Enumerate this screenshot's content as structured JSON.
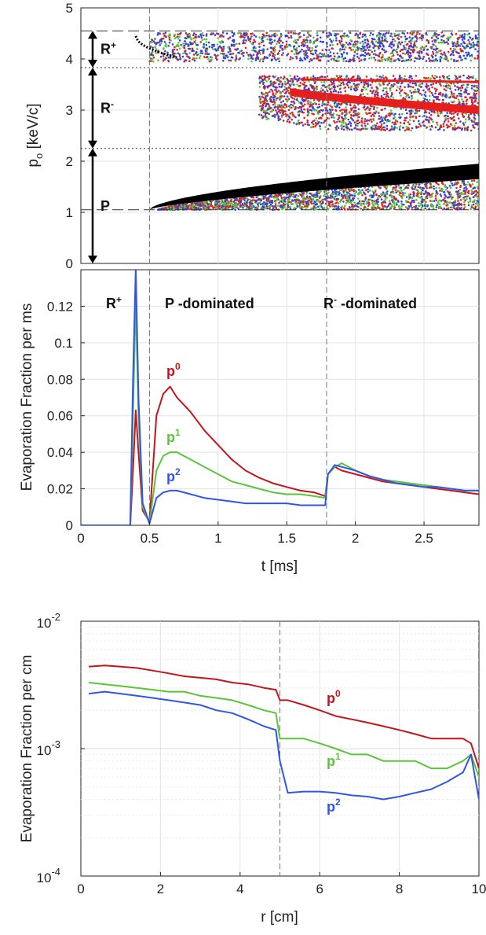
{
  "chart_data": [
    {
      "type": "scatter",
      "xlabel": "",
      "ylabel": "p_o [keV/c]",
      "ylabel_main": "p",
      "ylabel_sub": "o",
      "ylabel_rest": " [keV/c]",
      "xlim": [
        0,
        2.9
      ],
      "ylim": [
        0,
        5
      ],
      "y_ticks": [
        "0",
        "1",
        "2",
        "3",
        "4",
        "5"
      ],
      "grid": true,
      "regions": [
        {
          "label_main": "R",
          "label_sup": "+",
          "range": [
            3.83,
            4.55
          ]
        },
        {
          "label_main": "R",
          "label_sup": "-",
          "range": [
            2.25,
            3.83
          ]
        },
        {
          "label_main": "P",
          "label_sup": "",
          "range": [
            0,
            2.25
          ]
        }
      ],
      "horizontal_lines": [
        {
          "y": 4.55,
          "style": "dashed"
        },
        {
          "y": 3.83,
          "style": "dotted"
        },
        {
          "y": 2.25,
          "style": "dotted"
        },
        {
          "y": 1.05,
          "style": "dashed"
        }
      ],
      "vertical_lines": [
        0.5,
        1.79
      ],
      "series_colors": {
        "passing": "#000000",
        "p0": "#e3201b",
        "p1": "#5cc43a",
        "p2": "#2b45e0"
      }
    },
    {
      "type": "line",
      "xlabel": "t [ms]",
      "ylabel": "Evaporation Fraction per ms",
      "xlim": [
        0,
        2.9
      ],
      "ylim": [
        0,
        0.14
      ],
      "x_ticks": [
        "0",
        "0.5",
        "1",
        "1.5",
        "2",
        "2.5"
      ],
      "y_ticks": [
        "0",
        "0.02",
        "0.04",
        "0.06",
        "0.08",
        "0.1",
        "0.12"
      ],
      "grid": true,
      "annotations": [
        {
          "main": "R",
          "sup": "+",
          "rest": ""
        },
        {
          "main": "P",
          "sup": "",
          "rest": " -dominated"
        },
        {
          "main": "R",
          "sup": "-",
          "rest": " -dominated"
        }
      ],
      "vertical_lines": [
        0.5,
        1.79
      ],
      "x": [
        0,
        0.1,
        0.2,
        0.3,
        0.36,
        0.38,
        0.4,
        0.42,
        0.45,
        0.5,
        0.55,
        0.6,
        0.65,
        0.7,
        0.8,
        0.9,
        1.0,
        1.1,
        1.2,
        1.3,
        1.4,
        1.5,
        1.6,
        1.7,
        1.78,
        1.8,
        1.85,
        1.9,
        2.0,
        2.1,
        2.2,
        2.3,
        2.4,
        2.5,
        2.6,
        2.7,
        2.8,
        2.9
      ],
      "series": [
        {
          "name": "p0",
          "label_main": "p",
          "label_sup": "0",
          "color": "#c4151c",
          "values": [
            0,
            0,
            0,
            0,
            0,
            0.03,
            0.063,
            0.04,
            0.008,
            0.002,
            0.06,
            0.072,
            0.076,
            0.07,
            0.062,
            0.052,
            0.044,
            0.036,
            0.03,
            0.026,
            0.023,
            0.021,
            0.019,
            0.018,
            0.016,
            0.028,
            0.032,
            0.03,
            0.028,
            0.026,
            0.024,
            0.023,
            0.022,
            0.021,
            0.02,
            0.019,
            0.018,
            0.017
          ]
        },
        {
          "name": "p1",
          "label_main": "p",
          "label_sup": "1",
          "color": "#5cc43a",
          "values": [
            0,
            0,
            0,
            0,
            0,
            0.06,
            0.123,
            0.06,
            0.01,
            0.001,
            0.03,
            0.038,
            0.04,
            0.04,
            0.036,
            0.032,
            0.028,
            0.024,
            0.022,
            0.02,
            0.018,
            0.017,
            0.017,
            0.016,
            0.015,
            0.028,
            0.032,
            0.034,
            0.03,
            0.027,
            0.025,
            0.024,
            0.023,
            0.022,
            0.021,
            0.02,
            0.019,
            0.019
          ]
        },
        {
          "name": "p2",
          "label_main": "p",
          "label_sup": "2",
          "color": "#2f56e6",
          "values": [
            0,
            0,
            0,
            0,
            0,
            0.08,
            0.141,
            0.07,
            0.012,
            0.001,
            0.015,
            0.018,
            0.019,
            0.019,
            0.017,
            0.015,
            0.014,
            0.013,
            0.012,
            0.012,
            0.012,
            0.012,
            0.011,
            0.011,
            0.011,
            0.028,
            0.033,
            0.032,
            0.03,
            0.027,
            0.025,
            0.023,
            0.022,
            0.021,
            0.021,
            0.02,
            0.019,
            0.019
          ]
        }
      ]
    },
    {
      "type": "line",
      "xlabel": "r [cm]",
      "ylabel": "Evaporation Fraction per cm",
      "xlim": [
        0,
        10
      ],
      "ylim": [
        0.0001,
        0.01
      ],
      "yscale": "log",
      "x_ticks": [
        "0",
        "2",
        "4",
        "6",
        "8",
        "10"
      ],
      "y_ticks": [
        {
          "base": "10",
          "exp": "-4"
        },
        {
          "base": "10",
          "exp": "-3"
        },
        {
          "base": "10",
          "exp": "-2"
        }
      ],
      "grid": true,
      "vertical_lines": [
        5
      ],
      "x": [
        0.2,
        0.6,
        1.0,
        1.4,
        1.8,
        2.2,
        2.6,
        3.0,
        3.4,
        3.8,
        4.2,
        4.6,
        4.9,
        5.0,
        5.2,
        5.6,
        6.0,
        6.4,
        6.8,
        7.2,
        7.6,
        8.0,
        8.4,
        8.8,
        9.2,
        9.6,
        9.8,
        10.0
      ],
      "series": [
        {
          "name": "p0",
          "label_main": "p",
          "label_sup": "0",
          "color": "#c4151c",
          "values": [
            0.0044,
            0.0045,
            0.0044,
            0.0043,
            0.0041,
            0.0039,
            0.0037,
            0.0036,
            0.0035,
            0.0033,
            0.0032,
            0.003,
            0.0029,
            0.0024,
            0.0024,
            0.0022,
            0.002,
            0.0018,
            0.0017,
            0.0016,
            0.0015,
            0.0014,
            0.0013,
            0.0012,
            0.0012,
            0.0012,
            0.0011,
            0.0007
          ]
        },
        {
          "name": "p1",
          "label_main": "p",
          "label_sup": "1",
          "color": "#5cc43a",
          "values": [
            0.0033,
            0.0032,
            0.0031,
            0.003,
            0.0029,
            0.0028,
            0.0028,
            0.0026,
            0.0025,
            0.0024,
            0.0022,
            0.002,
            0.0019,
            0.0012,
            0.0012,
            0.0012,
            0.0011,
            0.001,
            0.0009,
            0.0009,
            0.0008,
            0.0008,
            0.0008,
            0.0007,
            0.0007,
            0.0008,
            0.0009,
            0.0006
          ]
        },
        {
          "name": "p2",
          "label_main": "p",
          "label_sup": "2",
          "color": "#2f56e6",
          "values": [
            0.0027,
            0.0028,
            0.0027,
            0.0026,
            0.0025,
            0.0024,
            0.0023,
            0.0022,
            0.002,
            0.0019,
            0.0017,
            0.0015,
            0.0014,
            0.0008,
            0.00045,
            0.00046,
            0.00046,
            0.00045,
            0.00043,
            0.00042,
            0.0004,
            0.00042,
            0.00045,
            0.00048,
            0.00055,
            0.00065,
            0.0009,
            0.0004
          ]
        }
      ]
    }
  ]
}
